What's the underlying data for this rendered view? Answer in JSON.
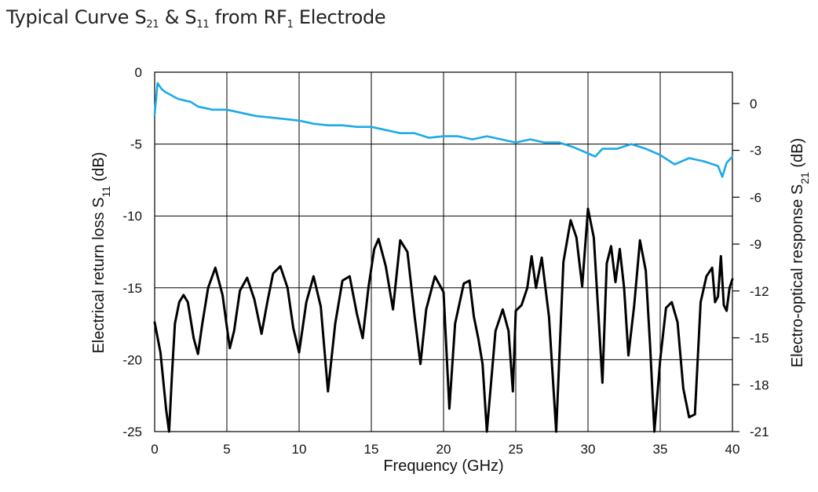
{
  "title": {
    "prefix": "Typical Curve S",
    "s21_sub": "21",
    "mid": " & S",
    "s11_sub": "11",
    "mid2": " from RF",
    "rf_sub": "1",
    "suffix": " Electrode"
  },
  "chart_data": {
    "type": "line",
    "x_axis": {
      "label": "Frequency (GHz)",
      "range": [
        0,
        40
      ],
      "ticks": [
        0,
        5,
        10,
        15,
        20,
        25,
        30,
        35,
        40
      ]
    },
    "y_left": {
      "label_main": "Electrical return loss S",
      "label_sub": "11",
      "label_unit": " (dB)",
      "range": [
        -25,
        0
      ],
      "ticks": [
        0,
        -5,
        -10,
        -15,
        -20,
        -25
      ]
    },
    "y_right": {
      "label_main": "Electro-optical response S",
      "label_sub": "21",
      "label_unit": " (dB)",
      "range": [
        -21,
        2
      ],
      "ticks": [
        0,
        -3,
        -6,
        -9,
        -12,
        -15,
        -18,
        -21
      ]
    },
    "grid": true,
    "series": [
      {
        "axis": "right",
        "color": "#1eaae6",
        "x": [
          0,
          0.2,
          0.5,
          0.8,
          1.2,
          1.6,
          2,
          2.5,
          3,
          3.5,
          4,
          5,
          6,
          7,
          8,
          9,
          10,
          11,
          12,
          13,
          14,
          15,
          16,
          17,
          18,
          19,
          20,
          21,
          22,
          23,
          24,
          25,
          26,
          27,
          28,
          29,
          30,
          30.5,
          31,
          32,
          33,
          34,
          35,
          36,
          37,
          38,
          39,
          39.3,
          39.6,
          40
        ],
        "y": [
          -0.7,
          1.3,
          0.9,
          0.7,
          0.5,
          0.3,
          0.2,
          0.1,
          -0.2,
          -0.3,
          -0.4,
          -0.4,
          -0.6,
          -0.8,
          -0.9,
          -1.0,
          -1.1,
          -1.3,
          -1.4,
          -1.4,
          -1.5,
          -1.5,
          -1.7,
          -1.9,
          -1.9,
          -2.2,
          -2.1,
          -2.1,
          -2.3,
          -2.1,
          -2.3,
          -2.5,
          -2.3,
          -2.5,
          -2.5,
          -2.8,
          -3.2,
          -3.4,
          -2.9,
          -2.9,
          -2.6,
          -2.9,
          -3.3,
          -3.9,
          -3.5,
          -3.7,
          -4.0,
          -4.7,
          -3.8,
          -3.4
        ]
      },
      {
        "axis": "left",
        "color": "#000000",
        "x": [
          0,
          0.4,
          0.8,
          1.0,
          1.2,
          1.4,
          1.7,
          2.0,
          2.3,
          2.7,
          3.0,
          3.3,
          3.7,
          4.2,
          4.7,
          5.2,
          5.5,
          5.9,
          6.4,
          6.9,
          7.4,
          7.8,
          8.2,
          8.7,
          9.2,
          9.6,
          10.0,
          10.5,
          11.0,
          11.5,
          12.0,
          12.5,
          13.0,
          13.5,
          14.0,
          14.4,
          14.8,
          15.2,
          15.5,
          16.0,
          16.5,
          17.0,
          17.5,
          18.0,
          18.4,
          18.8,
          19.4,
          20.0,
          20.4,
          20.8,
          21.4,
          21.8,
          22.1,
          22.4,
          22.7,
          23.0,
          23.6,
          24.1,
          24.5,
          24.8,
          25.0,
          25.4,
          25.8,
          26.1,
          26.4,
          26.8,
          27.3,
          27.8,
          28.3,
          28.8,
          29.2,
          29.6,
          30.0,
          30.4,
          30.7,
          31.0,
          31.3,
          31.6,
          31.9,
          32.2,
          32.5,
          32.8,
          33.2,
          33.6,
          34.0,
          34.3,
          34.6,
          35.0,
          35.4,
          35.8,
          36.2,
          36.6,
          37.0,
          37.4,
          37.8,
          38.2,
          38.6,
          38.8,
          39.0,
          39.2,
          39.4,
          39.6,
          39.8,
          40.0
        ],
        "y": [
          -17.4,
          -19.5,
          -23.5,
          -25.0,
          -21.0,
          -17.5,
          -16.0,
          -15.5,
          -16.0,
          -18.5,
          -19.6,
          -17.5,
          -15.0,
          -13.6,
          -15.5,
          -19.2,
          -18.0,
          -15.2,
          -14.3,
          -15.8,
          -18.2,
          -16.0,
          -14.0,
          -13.5,
          -15.0,
          -17.8,
          -19.5,
          -16.0,
          -14.2,
          -16.3,
          -22.2,
          -17.5,
          -14.5,
          -14.2,
          -16.8,
          -18.5,
          -15.0,
          -12.3,
          -11.6,
          -13.5,
          -16.5,
          -11.7,
          -12.5,
          -17.0,
          -20.3,
          -16.5,
          -14.2,
          -15.3,
          -23.4,
          -17.5,
          -14.7,
          -14.5,
          -17.0,
          -18.5,
          -20.3,
          -25.0,
          -18.0,
          -16.5,
          -18.0,
          -22.2,
          -16.6,
          -16.2,
          -15.0,
          -12.8,
          -15.0,
          -12.9,
          -17.0,
          -25.0,
          -13.2,
          -10.3,
          -11.5,
          -14.9,
          -9.5,
          -11.5,
          -16.5,
          -21.6,
          -13.3,
          -12.1,
          -14.6,
          -12.3,
          -15.0,
          -19.7,
          -16.2,
          -11.7,
          -13.8,
          -19.0,
          -25.0,
          -20.0,
          -16.4,
          -16.0,
          -17.4,
          -22.0,
          -24.0,
          -23.8,
          -16.0,
          -14.2,
          -13.6,
          -16.0,
          -15.6,
          -12.8,
          -16.2,
          -16.6,
          -15.0,
          -14.4
        ]
      }
    ]
  }
}
